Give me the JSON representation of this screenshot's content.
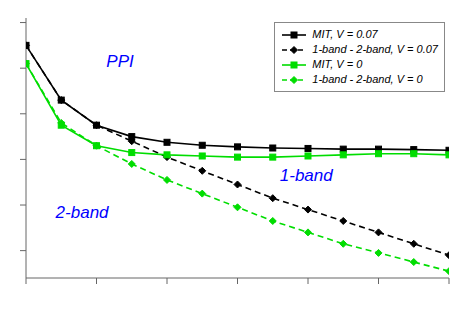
{
  "chart_data": {
    "type": "line",
    "x": [
      0,
      1,
      2,
      3,
      4,
      5,
      6,
      7,
      8,
      9,
      10,
      11,
      12
    ],
    "series": [
      {
        "name": "MIT,  V = 0.07",
        "color": "#000000",
        "line_style": "solid",
        "marker": "square",
        "values": [
          0.9,
          0.66,
          0.55,
          0.5,
          0.475,
          0.462,
          0.455,
          0.45,
          0.448,
          0.445,
          0.445,
          0.443,
          0.44
        ]
      },
      {
        "name": "1-band - 2-band, V = 0.07",
        "color": "#000000",
        "line_style": "dashed",
        "marker": "diamond",
        "values": [
          0.9,
          0.66,
          0.55,
          0.48,
          0.41,
          0.35,
          0.29,
          0.23,
          0.18,
          0.13,
          0.08,
          0.03,
          -0.02
        ]
      },
      {
        "name": "MIT,  V = 0",
        "color": "#00dd00",
        "line_style": "solid",
        "marker": "square",
        "values": [
          0.82,
          0.55,
          0.46,
          0.43,
          0.42,
          0.415,
          0.41,
          0.41,
          0.415,
          0.42,
          0.425,
          0.425,
          0.42
        ]
      },
      {
        "name": "1-band - 2-band, V = 0",
        "color": "#00dd00",
        "line_style": "dashed",
        "marker": "diamond",
        "values": [
          0.82,
          0.56,
          0.46,
          0.38,
          0.31,
          0.25,
          0.19,
          0.13,
          0.08,
          0.03,
          -0.01,
          -0.05,
          -0.09
        ]
      }
    ],
    "xlim": [
      0,
      12
    ],
    "ylim": [
      -0.12,
      1.02
    ],
    "xticks": [
      0,
      2,
      4,
      6,
      8,
      10,
      12
    ],
    "yticks": [
      0.0,
      0.2,
      0.4,
      0.6,
      0.8,
      1.0
    ],
    "tick_labels": false,
    "grid": false,
    "legend": "upper right",
    "annotations": [
      "PPI",
      "1-band",
      "2-band"
    ]
  }
}
